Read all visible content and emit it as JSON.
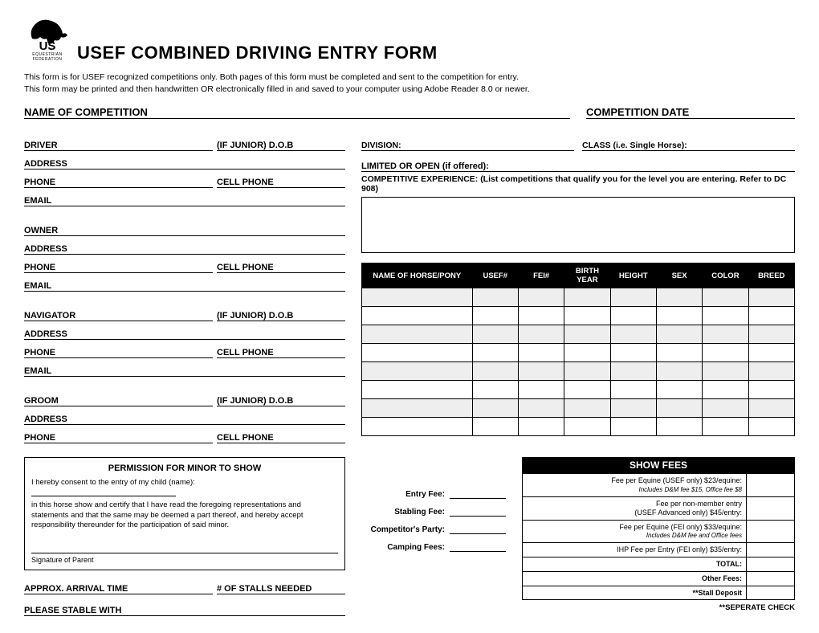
{
  "header": {
    "org_top": "US",
    "org_mid": "EQUESTRIAN",
    "org_bot": "FEDERATION",
    "title": "USEF COMBINED DRIVING ENTRY FORM"
  },
  "intro": {
    "line1": "This form is for USEF recognized competitions only. Both pages of this form must be completed and sent to the competition for entry.",
    "line2": "This form may be printed and then handwritten OR electronically filled in and saved to your computer using Adobe Reader 8.0 or newer."
  },
  "top": {
    "comp_name": "NAME OF COMPETITION",
    "comp_date": "COMPETITION DATE"
  },
  "left": {
    "driver": "DRIVER",
    "dob": "(IF JUNIOR) D.O.B",
    "address": "ADDRESS",
    "phone": "PHONE",
    "cell": "CELL PHONE",
    "email": "EMAIL",
    "owner": "OWNER",
    "navigator": "NAVIGATOR",
    "groom": "GROOM"
  },
  "right": {
    "division": "DIVISION:",
    "class": "CLASS (i.e. Single Horse):",
    "limited": "LIMITED OR OPEN (if offered):",
    "competitive": "COMPETITIVE EXPERIENCE: (List competitions that qualify you for the level you are entering. Refer to DC 908)"
  },
  "horse_table": {
    "headers": [
      "NAME OF HORSE/PONY",
      "USEF#",
      "FEI#",
      "BIRTH YEAR",
      "HEIGHT",
      "SEX",
      "COLOR",
      "BREED"
    ]
  },
  "permission": {
    "title": "PERMISSION FOR MINOR TO SHOW",
    "text1": "I hereby consent to the entry of my child (name):",
    "text2": "in this horse show and certify that I have read the foregoing representations and statements and that the same may be deemed a part thereof, and hereby accept responsibility thereunder for the participation of said minor.",
    "sig": "Signature of Parent"
  },
  "bottom_left": {
    "approx": "APPROX. ARRIVAL TIME",
    "stalls": "# OF STALLS NEEDED",
    "stable": "PLEASE STABLE WITH"
  },
  "fees": {
    "entry": "Entry Fee:",
    "stabling": "Stabling Fee:",
    "party": "Competitor's Party:",
    "camping": "Camping Fees:"
  },
  "show_fees": {
    "header": "SHOW FEES",
    "r1a": "Fee per Equine (USEF only) $23/equine:",
    "r1b": "Includes D&M fee $15, Office fee $8",
    "r2a": "Fee per non-member entry",
    "r2b": "(USEF Advanced only) $45/entry:",
    "r3a": "Fee per Equine (FEI only) $33/equine:",
    "r3b": "Includes D&M fee and Office fees",
    "r4": "IHP Fee per Entry (FEI only) $35/entry:",
    "total": "TOTAL:",
    "other": "Other Fees:",
    "stall": "**Stall Deposit",
    "footer": "**SEPERATE CHECK"
  }
}
